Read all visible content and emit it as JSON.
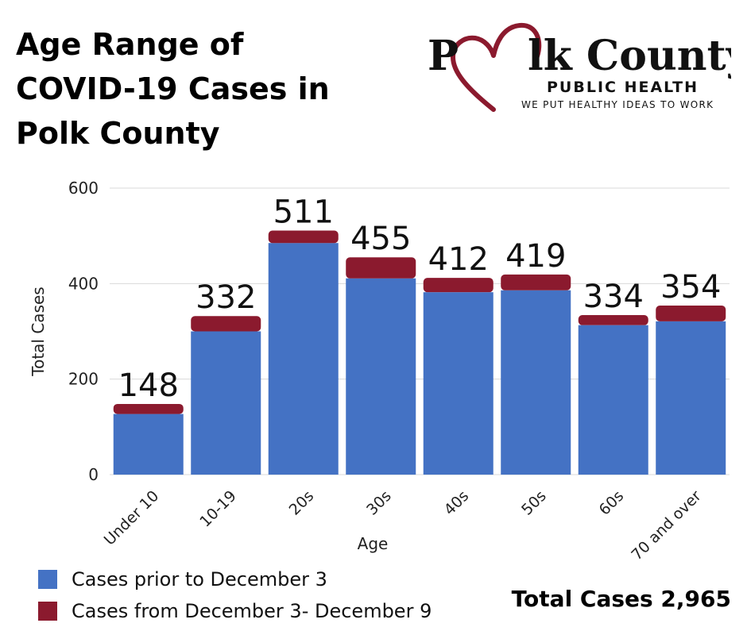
{
  "header": {
    "title_lines": [
      "Age Range of",
      "COVID-19 Cases in",
      "Polk County"
    ]
  },
  "logo": {
    "name_part1": "P",
    "name_part2": "lk County",
    "subtitle": "PUBLIC HEALTH",
    "tagline": "WE PUT HEALTHY IDEAS TO WORK"
  },
  "footer": {
    "total_label": "Total Cases 2,965"
  },
  "colors": {
    "prior": "#4472c4",
    "recent": "#8b1a2e",
    "grid": "#d9d9d9",
    "logo_red": "#8b1a2e"
  },
  "chart_data": {
    "type": "bar",
    "stacked": true,
    "categories": [
      "Under 10",
      "10-19",
      "20s",
      "30s",
      "40s",
      "50s",
      "60s",
      "70 and over"
    ],
    "series": [
      {
        "name": "Cases prior to December 3",
        "values": [
          127,
          300,
          485,
          411,
          382,
          386,
          313,
          321
        ]
      },
      {
        "name": "Cases from December 3- December 9",
        "values": [
          21,
          32,
          26,
          44,
          30,
          33,
          21,
          33
        ]
      }
    ],
    "totals": [
      148,
      332,
      511,
      455,
      412,
      419,
      334,
      354
    ],
    "ylim": [
      0,
      600
    ],
    "yticks": [
      0,
      200,
      400,
      600
    ],
    "xlabel": "Age",
    "ylabel": "Total Cases",
    "grid": true,
    "legend_position": "bottom-left"
  }
}
